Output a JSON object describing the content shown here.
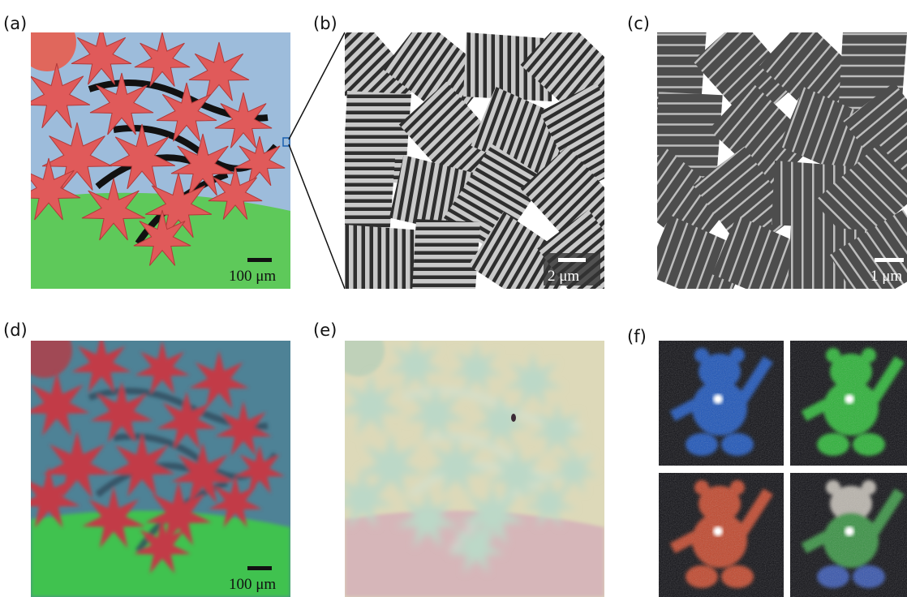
{
  "panels": [
    {
      "label": "(a)",
      "scale_bar": "100 μm"
    },
    {
      "label": "(b)",
      "scale_bar": "2 μm"
    },
    {
      "label": "(c)",
      "scale_bar": "1 μm"
    },
    {
      "label": "(d)",
      "scale_bar": "100 μm"
    },
    {
      "label": "(e)"
    },
    {
      "label": "(f)"
    }
  ]
}
